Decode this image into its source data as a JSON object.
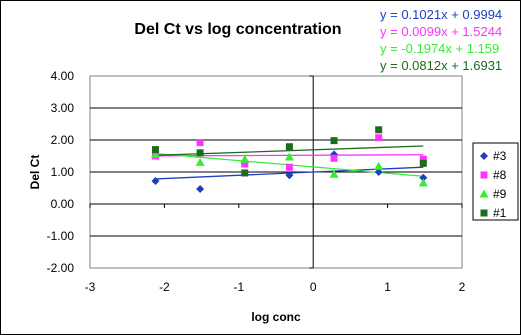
{
  "chart_data": {
    "type": "scatter",
    "title": "Del Ct vs log concentration",
    "xlabel": "log conc",
    "ylabel": "Del Ct",
    "xlim": [
      -3,
      2
    ],
    "ylim": [
      -2,
      4
    ],
    "x_ticks": [
      -3,
      -2,
      -1,
      0,
      1,
      2
    ],
    "y_ticks": [
      -2,
      -1,
      0,
      1,
      2,
      3,
      4
    ],
    "x_tick_labels": [
      "-3",
      "-2",
      "-1",
      "0",
      "1",
      "2"
    ],
    "y_tick_labels": [
      "-2.00",
      "-1.00",
      "0.00",
      "1.00",
      "2.00",
      "3.00",
      "4.00"
    ],
    "grid": "horizontal",
    "legend_position": "right",
    "series": [
      {
        "name": "#3",
        "marker": "diamond",
        "color": "#1f3fbf",
        "x": [
          -2.12,
          -1.52,
          -0.92,
          -0.32,
          0.28,
          0.88,
          1.48
        ],
        "y": [
          0.72,
          0.47,
          1.27,
          0.9,
          1.55,
          1.0,
          0.82
        ],
        "trendline": {
          "slope": 0.1021,
          "intercept": 0.9994,
          "equation": "y = 0.1021x + 0.9994"
        }
      },
      {
        "name": "#8",
        "marker": "square",
        "color": "#ff33ff",
        "x": [
          -2.12,
          -1.52,
          -0.92,
          -0.32,
          0.28,
          0.88,
          1.48
        ],
        "y": [
          1.5,
          1.92,
          1.25,
          1.15,
          1.43,
          2.07,
          1.4
        ],
        "trendline": {
          "slope": 0.0099,
          "intercept": 1.5244,
          "equation": "y = 0.0099x + 1.5244"
        }
      },
      {
        "name": "#9",
        "marker": "triangle",
        "color": "#33ee33",
        "x": [
          -2.12,
          -1.52,
          -0.92,
          -0.32,
          0.28,
          0.88,
          1.48
        ],
        "y": [
          1.55,
          1.3,
          1.4,
          1.47,
          0.93,
          1.18,
          0.66
        ],
        "trendline": {
          "slope": -0.1974,
          "intercept": 1.159,
          "equation": "y = -0.1974x + 1.159"
        }
      },
      {
        "name": "#1",
        "marker": "square",
        "color": "#1e6b1e",
        "x": [
          -2.12,
          -1.52,
          -0.92,
          -0.32,
          0.28,
          0.88,
          1.48
        ],
        "y": [
          1.7,
          1.6,
          0.97,
          1.79,
          1.98,
          2.32,
          1.27
        ],
        "trendline": {
          "slope": 0.0812,
          "intercept": 1.6931,
          "equation": "y = 0.0812x + 1.6931"
        }
      }
    ]
  }
}
